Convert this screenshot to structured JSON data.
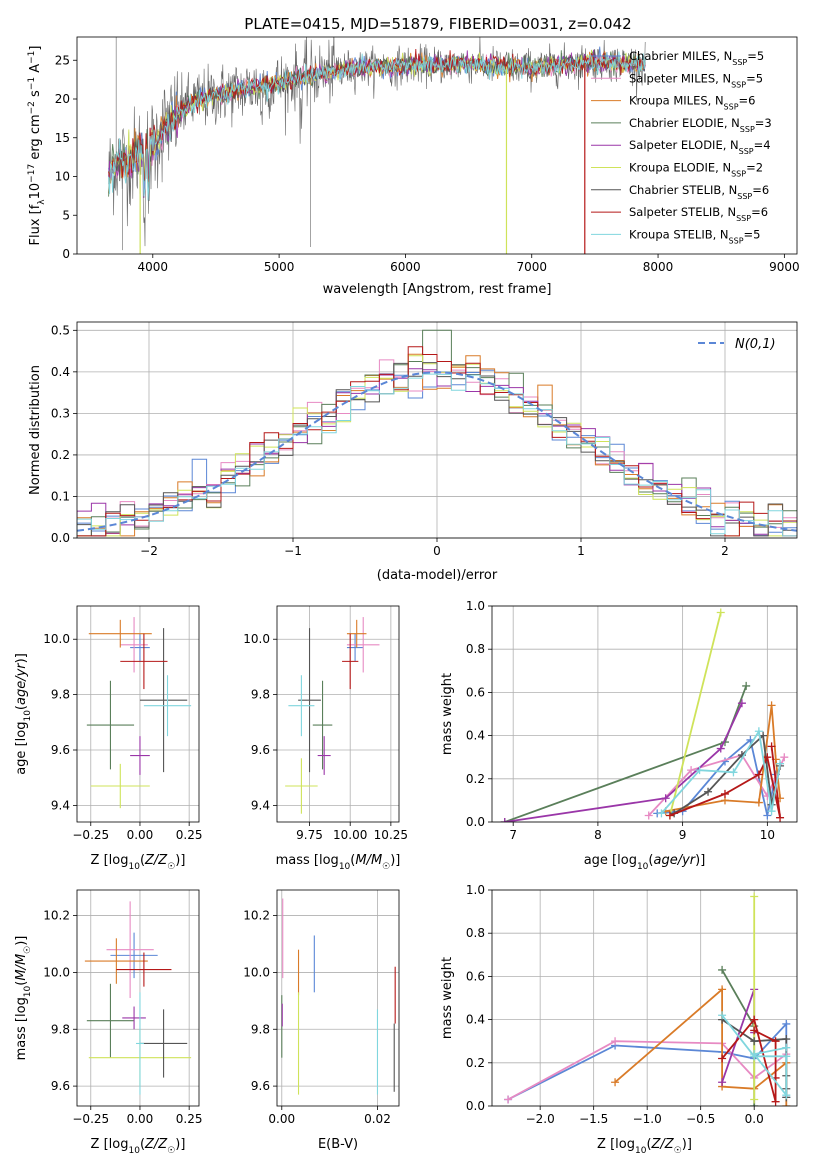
{
  "figure": {
    "title": "PLATE=0415, MJD=51879, FIBERID=0031, z=0.042"
  },
  "colors": {
    "chabrier_miles": "#5b87d6",
    "salpeter_miles": "#e78ac3",
    "kroupa_miles": "#d97b28",
    "chabrier_elodie": "#5a7f5a",
    "salpeter_elodie": "#9a36a8",
    "kroupa_elodie": "#cfe35a",
    "chabrier_stelib": "#555555",
    "salpeter_stelib": "#b51818",
    "kroupa_stelib": "#80d6de",
    "normal": "#5b87d6"
  },
  "chart_data": [
    {
      "id": "spectrum",
      "type": "line",
      "title": "PLATE=0415, MJD=51879, FIBERID=0031, z=0.042",
      "xlabel": "wavelength [Angstrom, rest frame]",
      "ylabel": "Flux [f_λ10^-17 erg cm^-2 s^-1 A^-1]",
      "xlim": [
        3400,
        9100
      ],
      "ylim": [
        0,
        28
      ],
      "xticks": [
        4000,
        5000,
        6000,
        7000,
        8000,
        9000
      ],
      "yticks": [
        0,
        5,
        10,
        15,
        20,
        25
      ],
      "legend": "top-right",
      "series": [
        {
          "name": "Chabrier MILES, N_SSP=5",
          "key": "chabrier_miles"
        },
        {
          "name": "Salpeter MILES, N_SSP=5",
          "key": "salpeter_miles"
        },
        {
          "name": "Kroupa MILES, N_SSP=6",
          "key": "kroupa_miles"
        },
        {
          "name": "Chabrier ELODIE, N_SSP=3",
          "key": "chabrier_elodie"
        },
        {
          "name": "Salpeter ELODIE, N_SSP=4",
          "key": "salpeter_elodie"
        },
        {
          "name": "Kroupa ELODIE, N_SSP=2",
          "key": "kroupa_elodie"
        },
        {
          "name": "Chabrier STELIB, N_SSP=6",
          "key": "chabrier_stelib"
        },
        {
          "name": "Salpeter STELIB, N_SSP=6",
          "key": "salpeter_stelib"
        },
        {
          "name": "Kroupa STELIB, N_SSP=5",
          "key": "kroupa_stelib"
        }
      ],
      "continuum": {
        "x": [
          3650,
          3700,
          3800,
          3900,
          4000,
          4100,
          4300,
          4500,
          4800,
          5000,
          5200,
          5400,
          5600,
          6000,
          6500,
          7000,
          7500,
          7900
        ],
        "y": [
          10,
          12,
          12,
          13,
          14,
          16.5,
          19.5,
          20.5,
          21.5,
          22,
          23,
          23.5,
          24,
          24.3,
          24.5,
          24,
          24.8,
          24.5
        ]
      },
      "model_cutoffs": [
        {
          "key": "kroupa_elodie",
          "x": 3900
        },
        {
          "key": "kroupa_elodie",
          "x": 6800
        },
        {
          "key": "salpeter_stelib",
          "x": 7420
        }
      ]
    },
    {
      "id": "residuals",
      "type": "line",
      "xlabel": "(data-model)/error",
      "ylabel": "Normed distribution",
      "xlim": [
        -2.5,
        2.5
      ],
      "ylim": [
        0,
        0.52
      ],
      "xticks": [
        -2,
        -1,
        0,
        1,
        2
      ],
      "yticks": [
        0.0,
        0.1,
        0.2,
        0.3,
        0.4,
        0.5
      ],
      "legend": "top-right",
      "normal_label": "N(0,1)"
    },
    {
      "id": "z-age",
      "type": "scatter",
      "xlabel": "Z [log10(Z/Z☉)]",
      "ylabel": "age [log10(age/yr)]",
      "xlim": [
        -0.32,
        0.3
      ],
      "ylim": [
        9.34,
        10.12
      ],
      "xticks": [
        -0.25,
        0.0,
        0.25
      ],
      "xticklabels": [
        "−0.25",
        "0.00",
        "0.25"
      ],
      "yticks": [
        9.4,
        9.6,
        9.8,
        10.0
      ],
      "yticklabels": [
        "9.4",
        "9.6",
        "9.8",
        "10.0"
      ],
      "points": [
        {
          "key": "chabrier_miles",
          "x": 0.0,
          "xerr": 0.05,
          "y": 9.97,
          "yerr": 0.05
        },
        {
          "key": "salpeter_miles",
          "x": -0.03,
          "xerr": 0.07,
          "y": 9.98,
          "yerr": 0.1
        },
        {
          "key": "kroupa_miles",
          "x": -0.1,
          "xerr": 0.16,
          "y": 10.02,
          "yerr": 0.05
        },
        {
          "key": "chabrier_elodie",
          "x": -0.15,
          "xerr": 0.12,
          "y": 9.69,
          "yerr": 0.16
        },
        {
          "key": "salpeter_elodie",
          "x": 0.0,
          "xerr": 0.05,
          "y": 9.58,
          "yerr": 0.07
        },
        {
          "key": "kroupa_elodie",
          "x": -0.1,
          "xerr": 0.15,
          "y": 9.47,
          "yerr": 0.08
        },
        {
          "key": "chabrier_stelib",
          "x": 0.12,
          "xerr": 0.12,
          "y": 9.78,
          "yerr": 0.26
        },
        {
          "key": "salpeter_stelib",
          "x": 0.02,
          "xerr": 0.12,
          "y": 9.92,
          "yerr": 0.1
        },
        {
          "key": "kroupa_stelib",
          "x": 0.14,
          "xerr": 0.12,
          "y": 9.76,
          "yerr": 0.11
        }
      ]
    },
    {
      "id": "mass-age",
      "type": "scatter",
      "xlabel": "mass [log10(M/M☉)]",
      "ylabel": "",
      "xlim": [
        9.55,
        10.3
      ],
      "ylim": [
        9.34,
        10.12
      ],
      "xticks": [
        9.75,
        10.0,
        10.25
      ],
      "xticklabels": [
        "9.75",
        "10.00",
        "10.25"
      ],
      "yticks": [
        9.4,
        9.6,
        9.8,
        10.0
      ],
      "yticklabels": [
        "9.4",
        "9.6",
        "9.8",
        "10.0"
      ],
      "points": [
        {
          "key": "chabrier_miles",
          "x": 10.03,
          "xerr": 0.05,
          "y": 9.97,
          "yerr": 0.05
        },
        {
          "key": "salpeter_miles",
          "x": 10.08,
          "xerr": 0.1,
          "y": 9.98,
          "yerr": 0.1
        },
        {
          "key": "kroupa_miles",
          "x": 10.04,
          "xerr": 0.06,
          "y": 10.02,
          "yerr": 0.05
        },
        {
          "key": "chabrier_elodie",
          "x": 9.83,
          "xerr": 0.06,
          "y": 9.69,
          "yerr": 0.16
        },
        {
          "key": "salpeter_elodie",
          "x": 9.84,
          "xerr": 0.04,
          "y": 9.58,
          "yerr": 0.07
        },
        {
          "key": "kroupa_elodie",
          "x": 9.7,
          "xerr": 0.1,
          "y": 9.47,
          "yerr": 0.1
        },
        {
          "key": "chabrier_stelib",
          "x": 9.75,
          "xerr": 0.07,
          "y": 9.78,
          "yerr": 0.26
        },
        {
          "key": "salpeter_stelib",
          "x": 10.0,
          "xerr": 0.05,
          "y": 9.92,
          "yerr": 0.1
        },
        {
          "key": "kroupa_stelib",
          "x": 9.7,
          "xerr": 0.08,
          "y": 9.76,
          "yerr": 0.11
        }
      ]
    },
    {
      "id": "age-weight",
      "type": "line",
      "xlabel": "age [log10(age/yr)]",
      "ylabel": "mass weight",
      "xlim": [
        6.75,
        10.35
      ],
      "ylim": [
        0,
        1.0
      ],
      "xticks": [
        7,
        8,
        9,
        10
      ],
      "xticklabels": [
        "7",
        "8",
        "9",
        "10"
      ],
      "yticks": [
        0.0,
        0.2,
        0.4,
        0.6,
        0.8,
        1.0
      ],
      "yticklabels": [
        "0.0",
        "0.2",
        "0.4",
        "0.6",
        "0.8",
        "1.0"
      ],
      "series": [
        {
          "key": "chabrier_miles",
          "x": [
            8.7,
            9.0,
            9.5,
            9.8,
            10.0,
            10.1
          ],
          "y": [
            0.04,
            0.05,
            0.28,
            0.38,
            0.03,
            0.22
          ]
        },
        {
          "key": "salpeter_miles",
          "x": [
            8.6,
            9.1,
            9.7,
            10.0,
            10.2
          ],
          "y": [
            0.03,
            0.24,
            0.31,
            0.12,
            0.3
          ]
        },
        {
          "key": "kroupa_miles",
          "x": [
            8.8,
            9.5,
            9.9,
            10.05,
            10.1,
            10.15
          ],
          "y": [
            0.05,
            0.1,
            0.09,
            0.54,
            0.29,
            0.11
          ]
        },
        {
          "key": "chabrier_elodie",
          "x": [
            6.9,
            9.5,
            9.75
          ],
          "y": [
            0.0,
            0.37,
            0.63
          ]
        },
        {
          "key": "salpeter_elodie",
          "x": [
            6.9,
            8.8,
            9.45,
            9.7
          ],
          "y": [
            0.0,
            0.11,
            0.34,
            0.55
          ]
        },
        {
          "key": "kroupa_elodie",
          "x": [
            8.85,
            9.45
          ],
          "y": [
            0.03,
            0.97
          ]
        },
        {
          "key": "chabrier_stelib",
          "x": [
            8.9,
            9.3,
            9.7,
            9.95,
            10.05,
            10.15
          ],
          "y": [
            0.04,
            0.14,
            0.31,
            0.4,
            0.08,
            0.26
          ]
        },
        {
          "key": "salpeter_stelib",
          "x": [
            8.85,
            9.5,
            9.9,
            10.0,
            10.15,
            10.05
          ],
          "y": [
            0.03,
            0.13,
            0.22,
            0.3,
            0.02,
            0.35
          ]
        },
        {
          "key": "kroupa_stelib",
          "x": [
            8.75,
            9.2,
            9.6,
            9.9,
            10.05,
            10.15
          ],
          "y": [
            0.04,
            0.24,
            0.23,
            0.42,
            0.05,
            0.27
          ]
        }
      ]
    },
    {
      "id": "z-mass",
      "type": "scatter",
      "xlabel": "Z [log10(Z/Z☉)]",
      "ylabel": "mass [log10(M/M☉)]",
      "xlim": [
        -0.32,
        0.3
      ],
      "ylim": [
        9.53,
        10.29
      ],
      "xticks": [
        -0.25,
        0.0,
        0.25
      ],
      "xticklabels": [
        "−0.25",
        "0.00",
        "0.25"
      ],
      "yticks": [
        9.6,
        9.8,
        10.0,
        10.2
      ],
      "yticklabels": [
        "9.6",
        "9.8",
        "10.0",
        "10.2"
      ],
      "points": [
        {
          "key": "chabrier_miles",
          "x": -0.03,
          "xerr": 0.12,
          "y": 10.06,
          "yerr": 0.08
        },
        {
          "key": "salpeter_miles",
          "x": -0.05,
          "xerr": 0.12,
          "y": 10.08,
          "yerr": 0.17
        },
        {
          "key": "kroupa_miles",
          "x": -0.12,
          "xerr": 0.16,
          "y": 10.04,
          "yerr": 0.08
        },
        {
          "key": "chabrier_elodie",
          "x": -0.15,
          "xerr": 0.12,
          "y": 9.83,
          "yerr": 0.13
        },
        {
          "key": "salpeter_elodie",
          "x": -0.03,
          "xerr": 0.06,
          "y": 9.84,
          "yerr": 0.04
        },
        {
          "key": "kroupa_elodie",
          "x": 0.0,
          "xerr": 0.26,
          "y": 9.7,
          "yerr": 0.1
        },
        {
          "key": "chabrier_stelib",
          "x": 0.12,
          "xerr": 0.12,
          "y": 9.75,
          "yerr": 0.12
        },
        {
          "key": "salpeter_stelib",
          "x": 0.02,
          "xerr": 0.14,
          "y": 10.01,
          "yerr": 0.06
        },
        {
          "key": "kroupa_stelib",
          "x": 0.0,
          "xerr": 0.02,
          "y": 9.75,
          "yerr": 0.18
        }
      ]
    },
    {
      "id": "ebv-mass",
      "type": "scatter",
      "xlabel": "E(B-V)",
      "ylabel": "",
      "xlim": [
        -0.001,
        0.0245
      ],
      "ylim": [
        9.53,
        10.29
      ],
      "xticks": [
        0.0,
        0.02
      ],
      "xticklabels": [
        "0.00",
        "0.02"
      ],
      "yticks": [
        9.6,
        9.8,
        10.0,
        10.2
      ],
      "yticklabels": [
        "9.6",
        "9.8",
        "10.0",
        "10.2"
      ],
      "points": [
        {
          "key": "chabrier_miles",
          "x": 0.0068,
          "xerr": 0,
          "y": 10.03,
          "yerr": 0.1
        },
        {
          "key": "salpeter_miles",
          "x": 0.0002,
          "xerr": 0,
          "y": 10.12,
          "yerr": 0.14
        },
        {
          "key": "kroupa_miles",
          "x": 0.0035,
          "xerr": 0,
          "y": 10.0,
          "yerr": 0.08
        },
        {
          "key": "chabrier_elodie",
          "x": 0.0,
          "xerr": 0,
          "y": 9.81,
          "yerr": 0.11
        },
        {
          "key": "salpeter_elodie",
          "x": 0.0001,
          "xerr": 0,
          "y": 9.85,
          "yerr": 0.04
        },
        {
          "key": "kroupa_elodie",
          "x": 0.0035,
          "xerr": 0,
          "y": 9.75,
          "yerr": 0.18
        },
        {
          "key": "chabrier_stelib",
          "x": 0.0235,
          "xerr": 0,
          "y": 9.7,
          "yerr": 0.12
        },
        {
          "key": "salpeter_stelib",
          "x": 0.0237,
          "xerr": 0,
          "y": 9.92,
          "yerr": 0.1
        },
        {
          "key": "kroupa_stelib",
          "x": 0.02,
          "xerr": 0,
          "y": 9.72,
          "yerr": 0.15
        }
      ]
    },
    {
      "id": "z-weight",
      "type": "line",
      "xlabel": "Z [log10(Z/Z☉)]",
      "ylabel": "mass weight",
      "xlim": [
        -2.45,
        0.4
      ],
      "ylim": [
        0,
        1.0
      ],
      "xticks": [
        -2.0,
        -1.5,
        -1.0,
        -0.5,
        0.0
      ],
      "xticklabels": [
        "−2.0",
        "−1.5",
        "−1.0",
        "−0.5",
        "0.0"
      ],
      "yticks": [
        0.0,
        0.2,
        0.4,
        0.6,
        0.8,
        1.0
      ],
      "yticklabels": [
        "0.0",
        "0.2",
        "0.4",
        "0.6",
        "0.8",
        "1.0"
      ],
      "series": [
        {
          "key": "chabrier_miles",
          "x": [
            -2.3,
            -1.3,
            -0.3,
            0.0,
            0.3,
            0.3
          ],
          "y": [
            0.03,
            0.28,
            0.25,
            0.22,
            0.38,
            0.04
          ]
        },
        {
          "key": "salpeter_miles",
          "x": [
            -2.3,
            -1.3,
            -0.3,
            0.0,
            0.3
          ],
          "y": [
            0.03,
            0.3,
            0.29,
            0.13,
            0.24
          ]
        },
        {
          "key": "kroupa_miles",
          "x": [
            -1.3,
            -0.3,
            -0.3,
            0.0,
            0.3,
            0.3
          ],
          "y": [
            0.11,
            0.54,
            0.09,
            0.08,
            0.2,
            0.0
          ]
        },
        {
          "key": "chabrier_elodie",
          "x": [
            -0.3,
            0.0,
            0.0
          ],
          "y": [
            0.63,
            0.37,
            0.0
          ]
        },
        {
          "key": "salpeter_elodie",
          "x": [
            -0.3,
            0.0,
            0.0
          ],
          "y": [
            0.11,
            0.54,
            0.34
          ]
        },
        {
          "key": "kroupa_elodie",
          "x": [
            0.0,
            0.0
          ],
          "y": [
            0.97,
            0.03
          ]
        },
        {
          "key": "chabrier_stelib",
          "x": [
            -0.3,
            0.0,
            0.3,
            0.3,
            0.3,
            0.3
          ],
          "y": [
            0.4,
            0.3,
            0.31,
            0.14,
            0.08,
            0.04
          ]
        },
        {
          "key": "salpeter_stelib",
          "x": [
            -0.3,
            0.0,
            0.2,
            0.2,
            0.2,
            0.0
          ],
          "y": [
            0.22,
            0.4,
            0.02,
            0.13,
            0.3,
            0.35
          ]
        },
        {
          "key": "kroupa_stelib",
          "x": [
            -0.3,
            0.0,
            0.3,
            0.3,
            0.0,
            0.3
          ],
          "y": [
            0.42,
            0.23,
            0.23,
            0.05,
            0.24,
            0.27
          ]
        }
      ]
    }
  ]
}
